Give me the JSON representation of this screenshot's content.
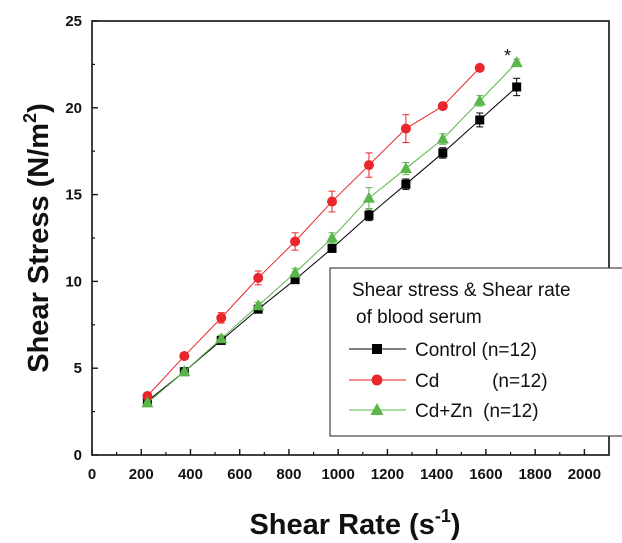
{
  "chart_data": {
    "type": "line",
    "xlabel": "Shear Rate (s",
    "xlabel_sup": "-1",
    "xlabel_end": ")",
    "ylabel": "Shear Stress (N/m",
    "ylabel_sup": "2",
    "ylabel_end": ")",
    "xlim": [
      0,
      2100
    ],
    "ylim": [
      0,
      25
    ],
    "x_ticks": [
      0,
      200,
      400,
      600,
      800,
      1000,
      1200,
      1400,
      1600,
      1800,
      2000
    ],
    "y_ticks": [
      0,
      5,
      10,
      15,
      20,
      25
    ],
    "grid": false,
    "legend": {
      "position": "bottom-right",
      "title_line1": "Shear stress & Shear rate",
      "title_line2": "of blood serum",
      "entries": [
        "Control (n=12)",
        "Cd          (n=12)",
        "Cd+Zn  (n=12)"
      ]
    },
    "annotation": "*",
    "series": [
      {
        "name": "Control (n=12)",
        "marker": "square",
        "color": "#000000",
        "x": [
          225,
          375,
          525,
          675,
          825,
          975,
          1125,
          1275,
          1425,
          1575,
          1725
        ],
        "y": [
          3.1,
          4.8,
          6.6,
          8.4,
          10.1,
          11.9,
          13.8,
          15.6,
          17.4,
          19.3,
          21.2
        ],
        "err": [
          0.1,
          0.15,
          0.15,
          0.15,
          0.15,
          0.2,
          0.3,
          0.3,
          0.3,
          0.4,
          0.5
        ]
      },
      {
        "name": "Cd (n=12)",
        "marker": "circle",
        "color": "#e8262b",
        "x": [
          225,
          375,
          525,
          675,
          825,
          975,
          1125,
          1275,
          1425,
          1575
        ],
        "y": [
          3.4,
          5.7,
          7.9,
          10.2,
          12.3,
          14.6,
          16.7,
          18.8,
          20.1,
          22.3
        ],
        "err": [
          0.15,
          0.2,
          0.3,
          0.4,
          0.5,
          0.6,
          0.7,
          0.8,
          0.2,
          0.1
        ]
      },
      {
        "name": "Cd+Zn (n=12)",
        "marker": "triangle",
        "color": "#5ab54a",
        "x": [
          225,
          375,
          525,
          675,
          825,
          975,
          1125,
          1275,
          1425,
          1575,
          1725
        ],
        "y": [
          3.0,
          4.8,
          6.7,
          8.6,
          10.5,
          12.5,
          14.8,
          16.5,
          18.2,
          20.4,
          22.6
        ],
        "err": [
          0.1,
          0.1,
          0.2,
          0.2,
          0.25,
          0.3,
          0.6,
          0.35,
          0.3,
          0.3,
          0.2
        ]
      }
    ]
  }
}
